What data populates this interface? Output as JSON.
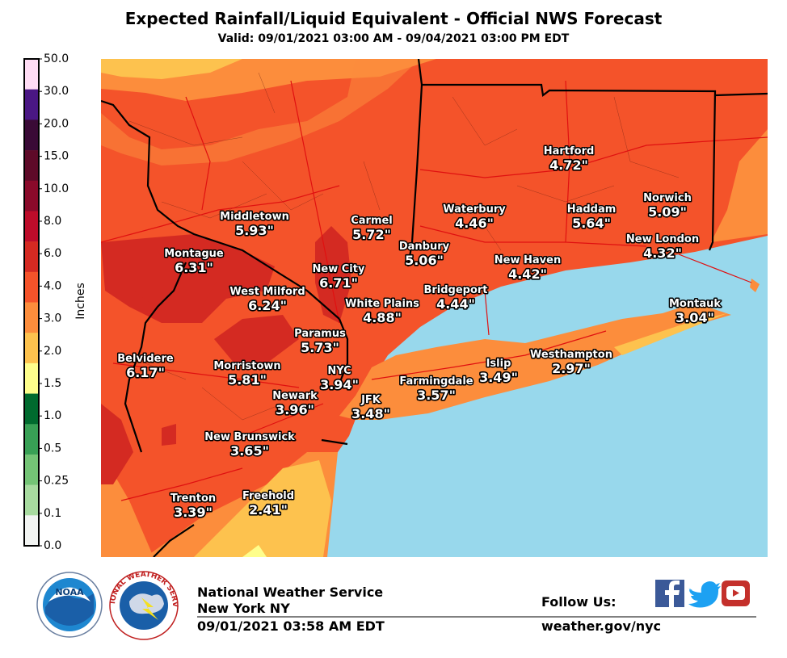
{
  "header": {
    "title": "Expected Rainfall/Liquid Equivalent - Official NWS Forecast",
    "subtitle": "Valid: 09/01/2021 03:00 AM - 09/04/2021 03:00 PM EDT"
  },
  "legend": {
    "axis_label": "Inches",
    "labels": [
      "50.0",
      "30.0",
      "20.0",
      "15.0",
      "10.0",
      "8.0",
      "6.0",
      "4.0",
      "3.0",
      "2.0",
      "1.5",
      "1.0",
      "0.5",
      "0.25",
      "0.1",
      "0.0"
    ],
    "colors": [
      "#ffdcf4",
      "#4a1784",
      "#3a0a36",
      "#5e0a28",
      "#8a0a2a",
      "#bd0c2a",
      "#d42a22",
      "#f4532a",
      "#fc8d3c",
      "#fdc24e",
      "#fefe8c",
      "#006a2e",
      "#38a055",
      "#74c476",
      "#a8dba0",
      "#f2f4f2"
    ]
  },
  "cities": [
    {
      "name": "Hartford",
      "amount": "4.72\""
    },
    {
      "name": "Middletown",
      "amount": "5.93\""
    },
    {
      "name": "Carmel",
      "amount": "5.72\""
    },
    {
      "name": "Waterbury",
      "amount": "4.46\""
    },
    {
      "name": "Haddam",
      "amount": "5.64\""
    },
    {
      "name": "Norwich",
      "amount": "5.09\""
    },
    {
      "name": "Montague",
      "amount": "6.31\""
    },
    {
      "name": "Danbury",
      "amount": "5.06\""
    },
    {
      "name": "New London",
      "amount": "4.32\""
    },
    {
      "name": "New City",
      "amount": "6.71\""
    },
    {
      "name": "New Haven",
      "amount": "4.42\""
    },
    {
      "name": "West Milford",
      "amount": "6.24\""
    },
    {
      "name": "Bridgeport",
      "amount": "4.44\""
    },
    {
      "name": "White Plains",
      "amount": "4.88\""
    },
    {
      "name": "Montauk",
      "amount": "3.04\""
    },
    {
      "name": "Paramus",
      "amount": "5.73\""
    },
    {
      "name": "Belvidere",
      "amount": "6.17\""
    },
    {
      "name": "Westhampton",
      "amount": "2.97\""
    },
    {
      "name": "Islip",
      "amount": "3.49\""
    },
    {
      "name": "Morristown",
      "amount": "5.81\""
    },
    {
      "name": "NYC",
      "amount": "3.94\""
    },
    {
      "name": "Farmingdale",
      "amount": "3.57\""
    },
    {
      "name": "Newark",
      "amount": "3.96\""
    },
    {
      "name": "JFK",
      "amount": "3.48\""
    },
    {
      "name": "New Brunswick",
      "amount": "3.65\""
    },
    {
      "name": "Trenton",
      "amount": "3.39\""
    },
    {
      "name": "Freehold",
      "amount": "2.41\""
    }
  ],
  "footer": {
    "noaa_logo": "NOAA",
    "nws_logo": "NATIONAL WEATHER SERVICE",
    "agency": "National Weather Service",
    "office": "New York NY",
    "timestamp": "09/01/2021 03:58 AM EDT",
    "follow": "Follow Us:",
    "url": "weather.gov/nyc"
  }
}
